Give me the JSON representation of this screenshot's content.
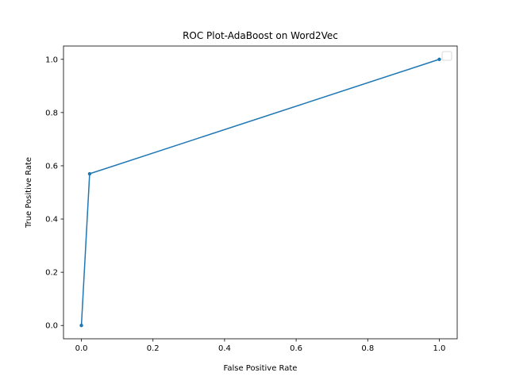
{
  "chart_data": {
    "type": "line",
    "title": "ROC Plot-AdaBoost on Word2Vec",
    "xlabel": "False Positive Rate",
    "ylabel": "True Positive Rate",
    "xlim": [
      -0.05,
      1.05
    ],
    "ylim": [
      -0.05,
      1.05
    ],
    "xticks": [
      "0.0",
      "0.2",
      "0.4",
      "0.6",
      "0.8",
      "1.0"
    ],
    "yticks": [
      "0.0",
      "0.2",
      "0.4",
      "0.6",
      "0.8",
      "1.0"
    ],
    "grid": false,
    "legend": {
      "placement": "top-right",
      "entries": []
    },
    "series": [
      {
        "color": "#1f77b4",
        "marker": "circle",
        "x": [
          0.0,
          0.023,
          1.0
        ],
        "y": [
          0.0,
          0.57,
          1.0
        ]
      }
    ]
  }
}
